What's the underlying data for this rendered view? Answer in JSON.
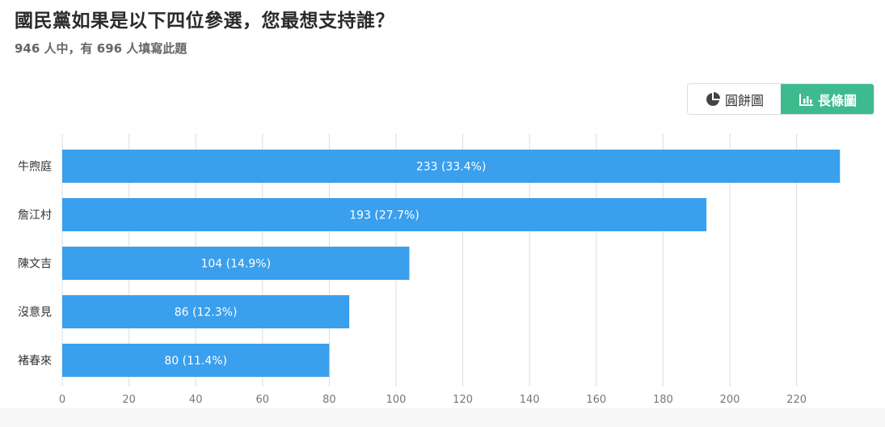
{
  "header": {
    "title": "國民黨如果是以下四位參選，您最想支持誰？",
    "subtitle": "946 人中，有 696 人填寫此題"
  },
  "view_toggle": {
    "pie_label": "圓餅圖",
    "bar_label": "長條圖",
    "active": "bar",
    "active_color": "#3dbb8f"
  },
  "chart_data": {
    "type": "bar",
    "orientation": "horizontal",
    "title": "",
    "xlabel": "",
    "ylabel": "",
    "categories": [
      "牛煦庭",
      "詹江村",
      "陳文吉",
      "沒意見",
      "褚春來"
    ],
    "values": [
      233,
      193,
      104,
      86,
      80
    ],
    "percentages": [
      "33.4%",
      "27.7%",
      "14.9%",
      "12.3%",
      "11.4%"
    ],
    "data_labels": [
      "233 (33.4%)",
      "193 (27.7%)",
      "104 (14.9%)",
      "86 (12.3%)",
      "80 (11.4%)"
    ],
    "xlim": [
      0,
      240
    ],
    "xticks": [
      0,
      20,
      40,
      60,
      80,
      100,
      120,
      140,
      160,
      180,
      200,
      220
    ],
    "grid": true,
    "legend": "none",
    "bar_color": "#3a9fec"
  }
}
